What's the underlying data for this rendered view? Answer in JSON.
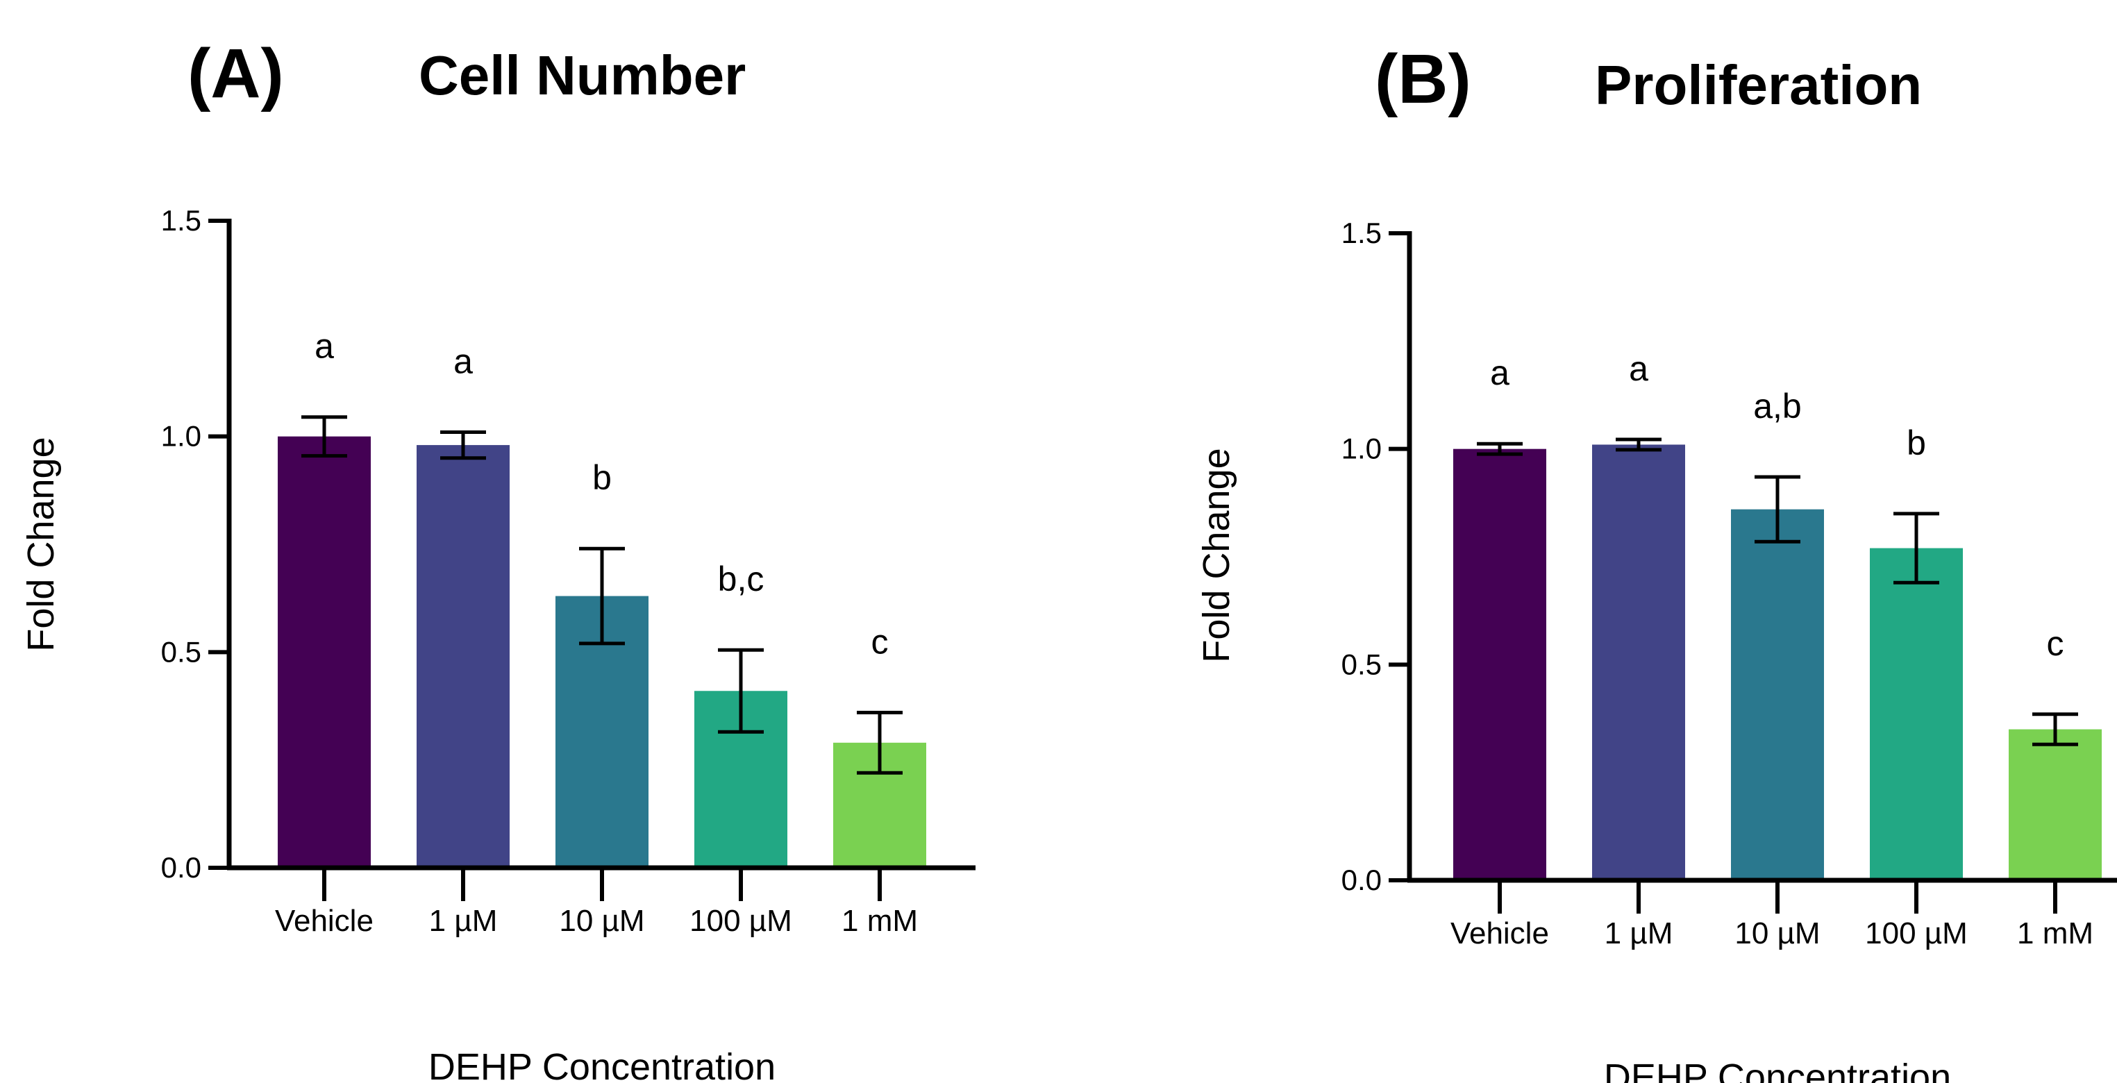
{
  "chart_data": [
    {
      "type": "bar",
      "panel_label": "(A)",
      "title": "Cell Number",
      "xlabel": "DEHP Concentration",
      "ylabel": "Fold Change",
      "ylim": [
        0,
        1.5
      ],
      "yticks": [
        "0.0",
        "0.5",
        "1.0",
        "1.5"
      ],
      "categories": [
        "Vehicle",
        "1 µM",
        "10 µM",
        "100 µM",
        "1 mM"
      ],
      "values": [
        1.0,
        0.98,
        0.63,
        0.41,
        0.29
      ],
      "errors": [
        0.045,
        0.03,
        0.11,
        0.095,
        0.07
      ],
      "significance": [
        "a",
        "a",
        "b",
        "b,c",
        "c"
      ],
      "colors": [
        "#440154",
        "#414487",
        "#2a788e",
        "#22a884",
        "#7ad151"
      ]
    },
    {
      "type": "bar",
      "panel_label": "(B)",
      "title": "Proliferation",
      "xlabel": "DEHP Concentration",
      "ylabel": "Fold Change",
      "ylim": [
        0,
        1.5
      ],
      "yticks": [
        "0.0",
        "0.5",
        "1.0",
        "1.5"
      ],
      "categories": [
        "Vehicle",
        "1 µM",
        "10 µM",
        "100 µM",
        "1 mM"
      ],
      "values": [
        1.0,
        1.01,
        0.86,
        0.77,
        0.35
      ],
      "errors": [
        0.012,
        0.012,
        0.075,
        0.08,
        0.035
      ],
      "significance": [
        "a",
        "a",
        "a,b",
        "b",
        "c"
      ],
      "colors": [
        "#440154",
        "#414487",
        "#2a788e",
        "#22a884",
        "#7ad151"
      ]
    }
  ]
}
